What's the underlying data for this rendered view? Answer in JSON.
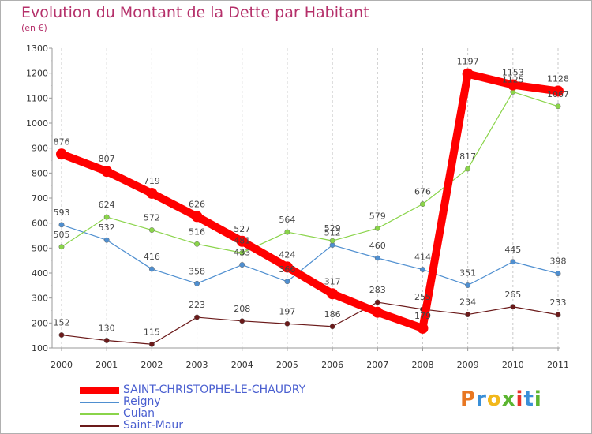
{
  "header": {
    "title": "Evolution du Montant de la Dette par Habitant",
    "unit": "(en €)"
  },
  "logo": {
    "letters": [
      "P",
      "r",
      "o",
      "x",
      "i",
      "t",
      "i"
    ],
    "colors": [
      "#e87722",
      "#3a8fd8",
      "#f2b81c",
      "#5cb531",
      "#e8322a",
      "#3a8fd8",
      "#5cb531"
    ]
  },
  "chart_data": {
    "type": "line",
    "title": "Evolution du Montant de la Dette par Habitant",
    "subtitle": "(en €)",
    "xlabel": "",
    "ylabel": "",
    "x": [
      "2000",
      "2001",
      "2002",
      "2003",
      "2004",
      "2005",
      "2006",
      "2007",
      "2008",
      "2009",
      "2010",
      "2011"
    ],
    "ylim": [
      100,
      1300
    ],
    "yticks": [
      100,
      200,
      300,
      400,
      500,
      600,
      700,
      800,
      900,
      1000,
      1100,
      1200,
      1300
    ],
    "grid": "vertical-dashed",
    "legend_position": "bottom-left",
    "series": [
      {
        "name": "SAINT-CHRISTOPHE-LE-CHAUDRY",
        "color": "#ff0000",
        "values": [
          876,
          807,
          719,
          626,
          527,
          424,
          317,
          243,
          179,
          1197,
          1153,
          1128
        ],
        "labels": [
          "876",
          "807",
          "719",
          "626",
          "527",
          "424",
          "317",
          "",
          "179",
          "1197",
          "1153",
          "1128"
        ]
      },
      {
        "name": "Reigny",
        "color": "#4f8fd0",
        "values": [
          593,
          532,
          416,
          358,
          433,
          366,
          512,
          460,
          414,
          351,
          445,
          398
        ],
        "labels": [
          "593",
          "532",
          "416",
          "358",
          "433",
          "366",
          "512",
          "460",
          "414",
          "351",
          "445",
          "398"
        ]
      },
      {
        "name": "Culan",
        "color": "#8ad44a",
        "values": [
          505,
          624,
          572,
          516,
          481,
          564,
          529,
          579,
          676,
          817,
          1125,
          1067
        ],
        "labels": [
          "505",
          "624",
          "572",
          "516",
          "481",
          "564",
          "529",
          "579",
          "676",
          "817",
          "1125",
          "1067"
        ]
      },
      {
        "name": "Saint-Maur",
        "color": "#6b1a1a",
        "values": [
          152,
          130,
          115,
          223,
          208,
          197,
          186,
          283,
          255,
          234,
          265,
          233
        ],
        "labels": [
          "152",
          "130",
          "115",
          "223",
          "208",
          "197",
          "186",
          "283",
          "255",
          "234",
          "265",
          "233"
        ]
      }
    ]
  }
}
